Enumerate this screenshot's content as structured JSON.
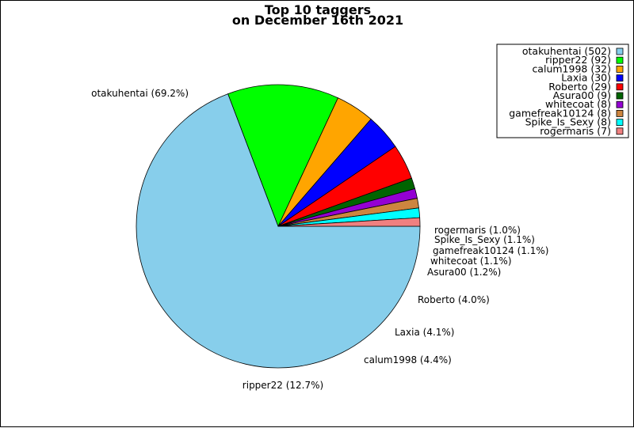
{
  "chart_data": {
    "type": "pie",
    "title": "Top 10 taggers",
    "subtitle": "on December 16th 2021",
    "start_angle_deg": 0,
    "direction": "clockwise",
    "legend_position": "top-right",
    "slices": [
      {
        "name": "otakuhentai",
        "value": 502,
        "percent_label": "otakuhentai (69.2%)",
        "legend_label": "otakuhentai (502)",
        "color": "#87ceeb"
      },
      {
        "name": "ripper22",
        "value": 92,
        "percent_label": "ripper22 (12.7%)",
        "legend_label": "ripper22 (92)",
        "color": "#00ff00"
      },
      {
        "name": "calum1998",
        "value": 32,
        "percent_label": "calum1998 (4.4%)",
        "legend_label": "calum1998 (32)",
        "color": "#ffa500"
      },
      {
        "name": "Laxia",
        "value": 30,
        "percent_label": "Laxia (4.1%)",
        "legend_label": "Laxia (30)",
        "color": "#0000ff"
      },
      {
        "name": "Roberto",
        "value": 29,
        "percent_label": "Roberto (4.0%)",
        "legend_label": "Roberto (29)",
        "color": "#ff0000"
      },
      {
        "name": "Asura00",
        "value": 9,
        "percent_label": "Asura00 (1.2%)",
        "legend_label": "Asura00 (9)",
        "color": "#006400"
      },
      {
        "name": "whitecoat",
        "value": 8,
        "percent_label": "whitecoat (1.1%)",
        "legend_label": "whitecoat (8)",
        "color": "#9400d3"
      },
      {
        "name": "gamefreak10124",
        "value": 8,
        "percent_label": "gamefreak10124 (1.1%)",
        "legend_label": "gamefreak10124 (8)",
        "color": "#cd853f"
      },
      {
        "name": "Spike_Is_Sexy",
        "value": 8,
        "percent_label": "Spike_Is_Sexy (1.1%)",
        "legend_label": "Spike_Is_Sexy (8)",
        "color": "#00ffff"
      },
      {
        "name": "rogermaris",
        "value": 7,
        "percent_label": "rogermaris (1.0%)",
        "legend_label": "rogermaris (7)",
        "color": "#f08080"
      }
    ]
  }
}
